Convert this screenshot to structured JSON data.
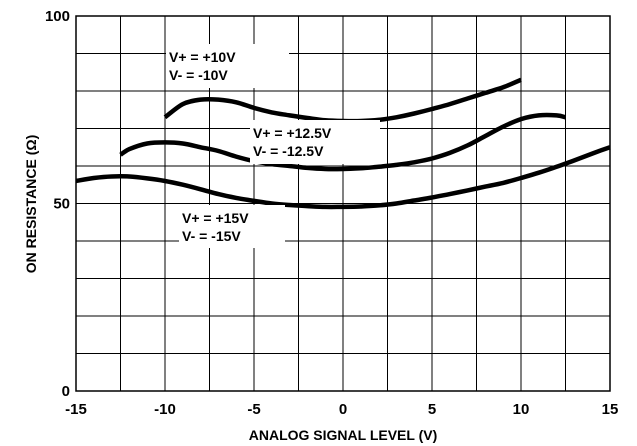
{
  "chart_data": {
    "type": "line",
    "xlabel": "ANALOG SIGNAL LEVEL (V)",
    "ylabel": "ON RESISTANCE (Ω)",
    "xlim": [
      -15,
      15
    ],
    "ylim": [
      0,
      100
    ],
    "x_ticks": [
      -15,
      -10,
      -5,
      0,
      5,
      10,
      15
    ],
    "x_tick_labels": [
      "-15",
      "-10",
      "-5",
      "0",
      "5",
      "10",
      "15"
    ],
    "y_tick_labels": [
      {
        "value": 0,
        "label": "0"
      },
      {
        "value": 50,
        "label": "50"
      },
      {
        "value": 100,
        "label": "100"
      }
    ],
    "x_grid_step": 2.5,
    "y_grid_step": 10,
    "grid": true,
    "series": [
      {
        "label_lines": [
          "V+ = +10V",
          "V- = -10V"
        ],
        "x": [
          -10,
          -9,
          -8,
          -7,
          -6,
          -5,
          -4,
          -3,
          -2,
          -1,
          0,
          1,
          2,
          3,
          4,
          5,
          6,
          7,
          8,
          9,
          10
        ],
        "y": [
          73,
          76.5,
          77.7,
          77.7,
          77,
          75.5,
          74.3,
          73.5,
          72.8,
          72.2,
          72,
          72,
          72.3,
          73,
          74,
          75.2,
          76.5,
          78,
          79.5,
          81,
          83
        ]
      },
      {
        "label_lines": [
          "V+ = +12.5V",
          "V- = -12.5V"
        ],
        "x": [
          -12.5,
          -12,
          -11,
          -10,
          -9,
          -8,
          -7,
          -6,
          -5,
          -4,
          -3,
          -2,
          -1,
          0,
          1,
          2,
          3,
          4,
          5,
          6,
          7,
          8,
          9,
          10,
          11,
          12,
          12.5
        ],
        "y": [
          63,
          64.5,
          66,
          66.3,
          66,
          65,
          64,
          62.5,
          61.3,
          60.5,
          60,
          59.5,
          59.2,
          59.2,
          59.4,
          59.8,
          60.3,
          61,
          62,
          63.5,
          65.5,
          68,
          70.5,
          72.5,
          73.5,
          73.5,
          73
        ]
      },
      {
        "label_lines": [
          "V+ = +15V",
          "V- = -15V"
        ],
        "x": [
          -15,
          -14,
          -13,
          -12,
          -11,
          -10,
          -9,
          -8,
          -7,
          -6,
          -5,
          -4,
          -3,
          -2,
          -1,
          0,
          1,
          2,
          3,
          4,
          5,
          6,
          7,
          8,
          9,
          10,
          11,
          12,
          13,
          14,
          15
        ],
        "y": [
          56,
          56.8,
          57.2,
          57.2,
          56.7,
          56,
          55,
          53.8,
          52.5,
          51.5,
          50.7,
          50,
          49.6,
          49.3,
          49.1,
          49.1,
          49.2,
          49.5,
          50,
          50.8,
          51.6,
          52.5,
          53.5,
          54.5,
          55.5,
          56.8,
          58.2,
          59.8,
          61.5,
          63.3,
          65
        ]
      }
    ]
  }
}
